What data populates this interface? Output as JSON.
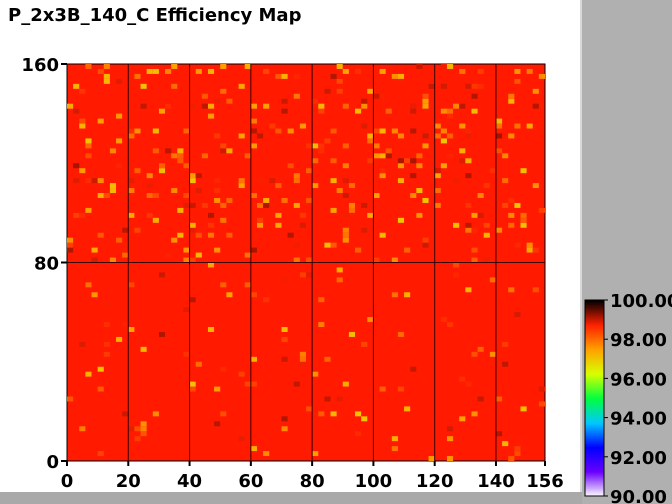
{
  "chart_data": {
    "type": "heatmap",
    "title": "P_2x3B_140_C Efficiency Map",
    "xlabel": "",
    "ylabel": "",
    "xlim": [
      0,
      156
    ],
    "ylim": [
      0,
      160
    ],
    "x_ticks": [
      "0",
      "20",
      "40",
      "60",
      "80",
      "100",
      "120",
      "140",
      "156"
    ],
    "y_ticks": [
      "0",
      "80",
      "160"
    ],
    "grid": true,
    "colorbar": {
      "range": [
        90,
        100
      ],
      "tick_labels": [
        "90.00",
        "92.00",
        "94.00",
        "96.00",
        "98.00",
        "100.00"
      ],
      "colors": [
        "#ffffff",
        "#6a00ff",
        "#0000ff",
        "#00c8ff",
        "#00ff40",
        "#d8ff00",
        "#ffa000",
        "#ff2000",
        "#000000"
      ]
    },
    "cell_value_dominant": 100.0,
    "cell_value_typical_range": [
      97.0,
      100.0
    ],
    "upper_half_speckle_density": "high",
    "lower_half_speckle_density": "low"
  }
}
